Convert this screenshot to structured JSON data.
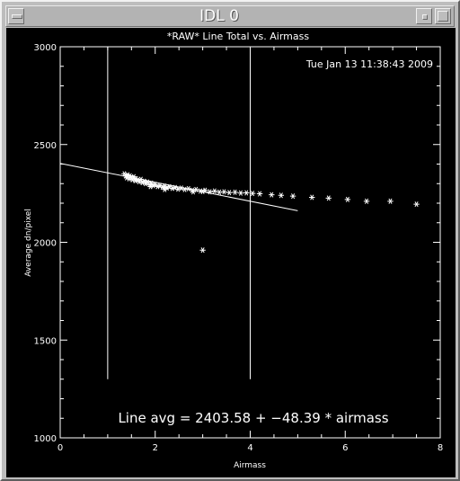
{
  "window": {
    "title": "IDL 0"
  },
  "chart_data": {
    "type": "scatter",
    "title": "*RAW* Line Total vs. Airmass",
    "timestamp": "Tue Jan 13 11:38:43 2009",
    "xlabel": "Airmass",
    "ylabel": "Average dn/pixel",
    "xlim": [
      0,
      8
    ],
    "ylim": [
      1000,
      3000
    ],
    "x_ticks": [
      "0",
      "2",
      "4",
      "6",
      "8"
    ],
    "y_ticks": [
      "1000",
      "1500",
      "2000",
      "2500",
      "3000"
    ],
    "grid": false,
    "annotation": "Line avg = 2403.58 + −48.39 * airmass",
    "fit": {
      "intercept": 2403.58,
      "slope": -48.39,
      "x_range": [
        0,
        5
      ]
    },
    "vertical_markers": [
      {
        "x": 1.0,
        "y_range": [
          1300,
          3000
        ]
      },
      {
        "x": 4.0,
        "y_range": [
          1300,
          3000
        ]
      }
    ],
    "series": [
      {
        "marker": "asterisk",
        "points": [
          [
            1.35,
            2350
          ],
          [
            1.38,
            2340
          ],
          [
            1.4,
            2330
          ],
          [
            1.42,
            2345
          ],
          [
            1.45,
            2325
          ],
          [
            1.47,
            2340
          ],
          [
            1.5,
            2330
          ],
          [
            1.52,
            2320
          ],
          [
            1.55,
            2335
          ],
          [
            1.58,
            2315
          ],
          [
            1.6,
            2325
          ],
          [
            1.63,
            2318
          ],
          [
            1.66,
            2310
          ],
          [
            1.7,
            2322
          ],
          [
            1.73,
            2305
          ],
          [
            1.77,
            2312
          ],
          [
            1.8,
            2300
          ],
          [
            1.84,
            2308
          ],
          [
            1.88,
            2295
          ],
          [
            1.92,
            2302
          ],
          [
            1.96,
            2290
          ],
          [
            2.0,
            2296
          ],
          [
            2.05,
            2285
          ],
          [
            2.1,
            2290
          ],
          [
            2.15,
            2282
          ],
          [
            2.2,
            2287
          ],
          [
            2.25,
            2278
          ],
          [
            2.3,
            2284
          ],
          [
            2.36,
            2276
          ],
          [
            2.42,
            2280
          ],
          [
            2.48,
            2272
          ],
          [
            2.55,
            2277
          ],
          [
            2.62,
            2270
          ],
          [
            2.7,
            2274
          ],
          [
            2.78,
            2266
          ],
          [
            2.86,
            2270
          ],
          [
            2.95,
            2262
          ],
          [
            3.05,
            2266
          ],
          [
            3.15,
            2258
          ],
          [
            3.25,
            2262
          ],
          [
            3.35,
            2256
          ],
          [
            3.45,
            2258
          ],
          [
            3.56,
            2254
          ],
          [
            3.68,
            2256
          ],
          [
            3.8,
            2252
          ],
          [
            3.92,
            2253
          ],
          [
            4.05,
            2250
          ],
          [
            4.2,
            2248
          ],
          [
            1.9,
            2285
          ],
          [
            2.2,
            2270
          ],
          [
            2.8,
            2258
          ],
          [
            3.0,
            2260
          ],
          [
            4.45,
            2243
          ],
          [
            4.65,
            2240
          ],
          [
            4.9,
            2236
          ],
          [
            5.3,
            2230
          ],
          [
            5.65,
            2226
          ],
          [
            6.05,
            2219
          ],
          [
            6.45,
            2210
          ],
          [
            6.95,
            2210
          ],
          [
            7.5,
            2195
          ],
          [
            3.0,
            1960
          ]
        ]
      }
    ]
  }
}
